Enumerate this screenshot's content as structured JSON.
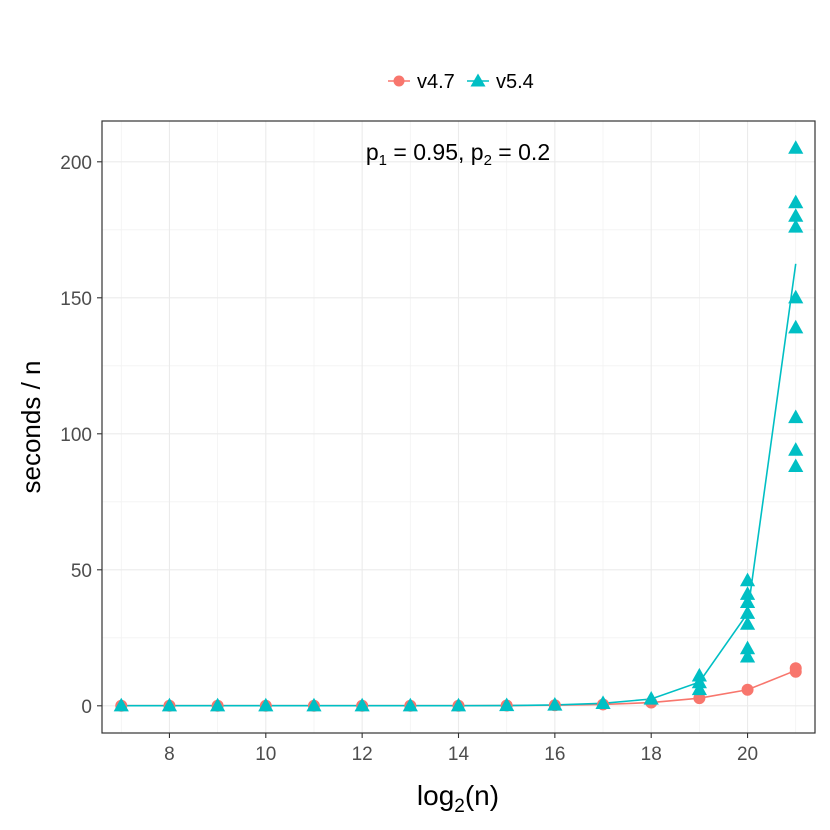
{
  "chart_data": {
    "type": "line",
    "annotation": {
      "p1_symbol": "p",
      "p1_sub": "1",
      "p1_value": " = 0.95, ",
      "p2_symbol": "p",
      "p2_sub": "2",
      "p2_value": " = 0.2"
    },
    "xlabel": {
      "base": "log",
      "sub": "2",
      "rest": "(n)"
    },
    "ylabel": "seconds / n",
    "xlim": [
      6.6,
      21.4
    ],
    "ylim": [
      -10,
      215
    ],
    "x_ticks": [
      8,
      10,
      12,
      14,
      16,
      18,
      20
    ],
    "x_tick_labels": [
      "8",
      "10",
      "12",
      "14",
      "16",
      "18",
      "20"
    ],
    "y_ticks": [
      0,
      50,
      100,
      150,
      200
    ],
    "y_tick_labels": [
      "0",
      "50",
      "100",
      "150",
      "200"
    ],
    "legend": {
      "position": "top",
      "entries": [
        {
          "label": "v4.7",
          "color": "#F8766D",
          "shape": "circle"
        },
        {
          "label": "v5.4",
          "color": "#00BFC4",
          "shape": "triangle"
        }
      ]
    },
    "series": [
      {
        "name": "v4.7",
        "color": "#F8766D",
        "shape": "circle",
        "line": [
          [
            7,
            0.05
          ],
          [
            8,
            0.05
          ],
          [
            9,
            0.05
          ],
          [
            10,
            0.05
          ],
          [
            11,
            0.05
          ],
          [
            12,
            0.05
          ],
          [
            13,
            0.05
          ],
          [
            14,
            0.05
          ],
          [
            15,
            0.1
          ],
          [
            16,
            0.2
          ],
          [
            17,
            0.5
          ],
          [
            18,
            1.2
          ],
          [
            19,
            2.8
          ],
          [
            20,
            5.9
          ],
          [
            21,
            13.0
          ]
        ],
        "points": [
          [
            7,
            0
          ],
          [
            8,
            0
          ],
          [
            9,
            0
          ],
          [
            10,
            0
          ],
          [
            11,
            0
          ],
          [
            12,
            0
          ],
          [
            13,
            0
          ],
          [
            14,
            0
          ],
          [
            15,
            0.1
          ],
          [
            16,
            0.2
          ],
          [
            17,
            0.5
          ],
          [
            18,
            1.2
          ],
          [
            19,
            2.8
          ],
          [
            20,
            5.9
          ],
          [
            21,
            12.5
          ],
          [
            21,
            13.8
          ]
        ]
      },
      {
        "name": "v5.4",
        "color": "#00BFC4",
        "shape": "triangle",
        "line": [
          [
            7,
            0.05
          ],
          [
            8,
            0.05
          ],
          [
            9,
            0.05
          ],
          [
            10,
            0.05
          ],
          [
            11,
            0.05
          ],
          [
            12,
            0.05
          ],
          [
            13,
            0.05
          ],
          [
            14,
            0.05
          ],
          [
            15,
            0.1
          ],
          [
            16,
            0.3
          ],
          [
            17,
            0.9
          ],
          [
            18,
            2.5
          ],
          [
            19,
            8.7
          ],
          [
            20,
            34.0
          ],
          [
            21,
            162.5
          ]
        ],
        "points": [
          [
            7,
            0
          ],
          [
            8,
            0
          ],
          [
            9,
            0
          ],
          [
            10,
            0
          ],
          [
            11,
            0
          ],
          [
            12,
            0
          ],
          [
            13,
            0
          ],
          [
            14,
            0
          ],
          [
            15,
            0.1
          ],
          [
            16,
            0.3
          ],
          [
            17,
            0.9
          ],
          [
            18,
            2.5
          ],
          [
            19,
            6
          ],
          [
            19,
            8.5
          ],
          [
            19,
            11
          ],
          [
            20,
            18
          ],
          [
            20,
            21
          ],
          [
            20,
            30
          ],
          [
            20,
            34
          ],
          [
            20,
            38
          ],
          [
            20,
            41
          ],
          [
            20,
            46
          ],
          [
            21,
            88
          ],
          [
            21,
            94
          ],
          [
            21,
            106
          ],
          [
            21,
            139
          ],
          [
            21,
            150
          ],
          [
            21,
            176
          ],
          [
            21,
            180
          ],
          [
            21,
            185
          ],
          [
            21,
            205
          ]
        ]
      }
    ]
  }
}
